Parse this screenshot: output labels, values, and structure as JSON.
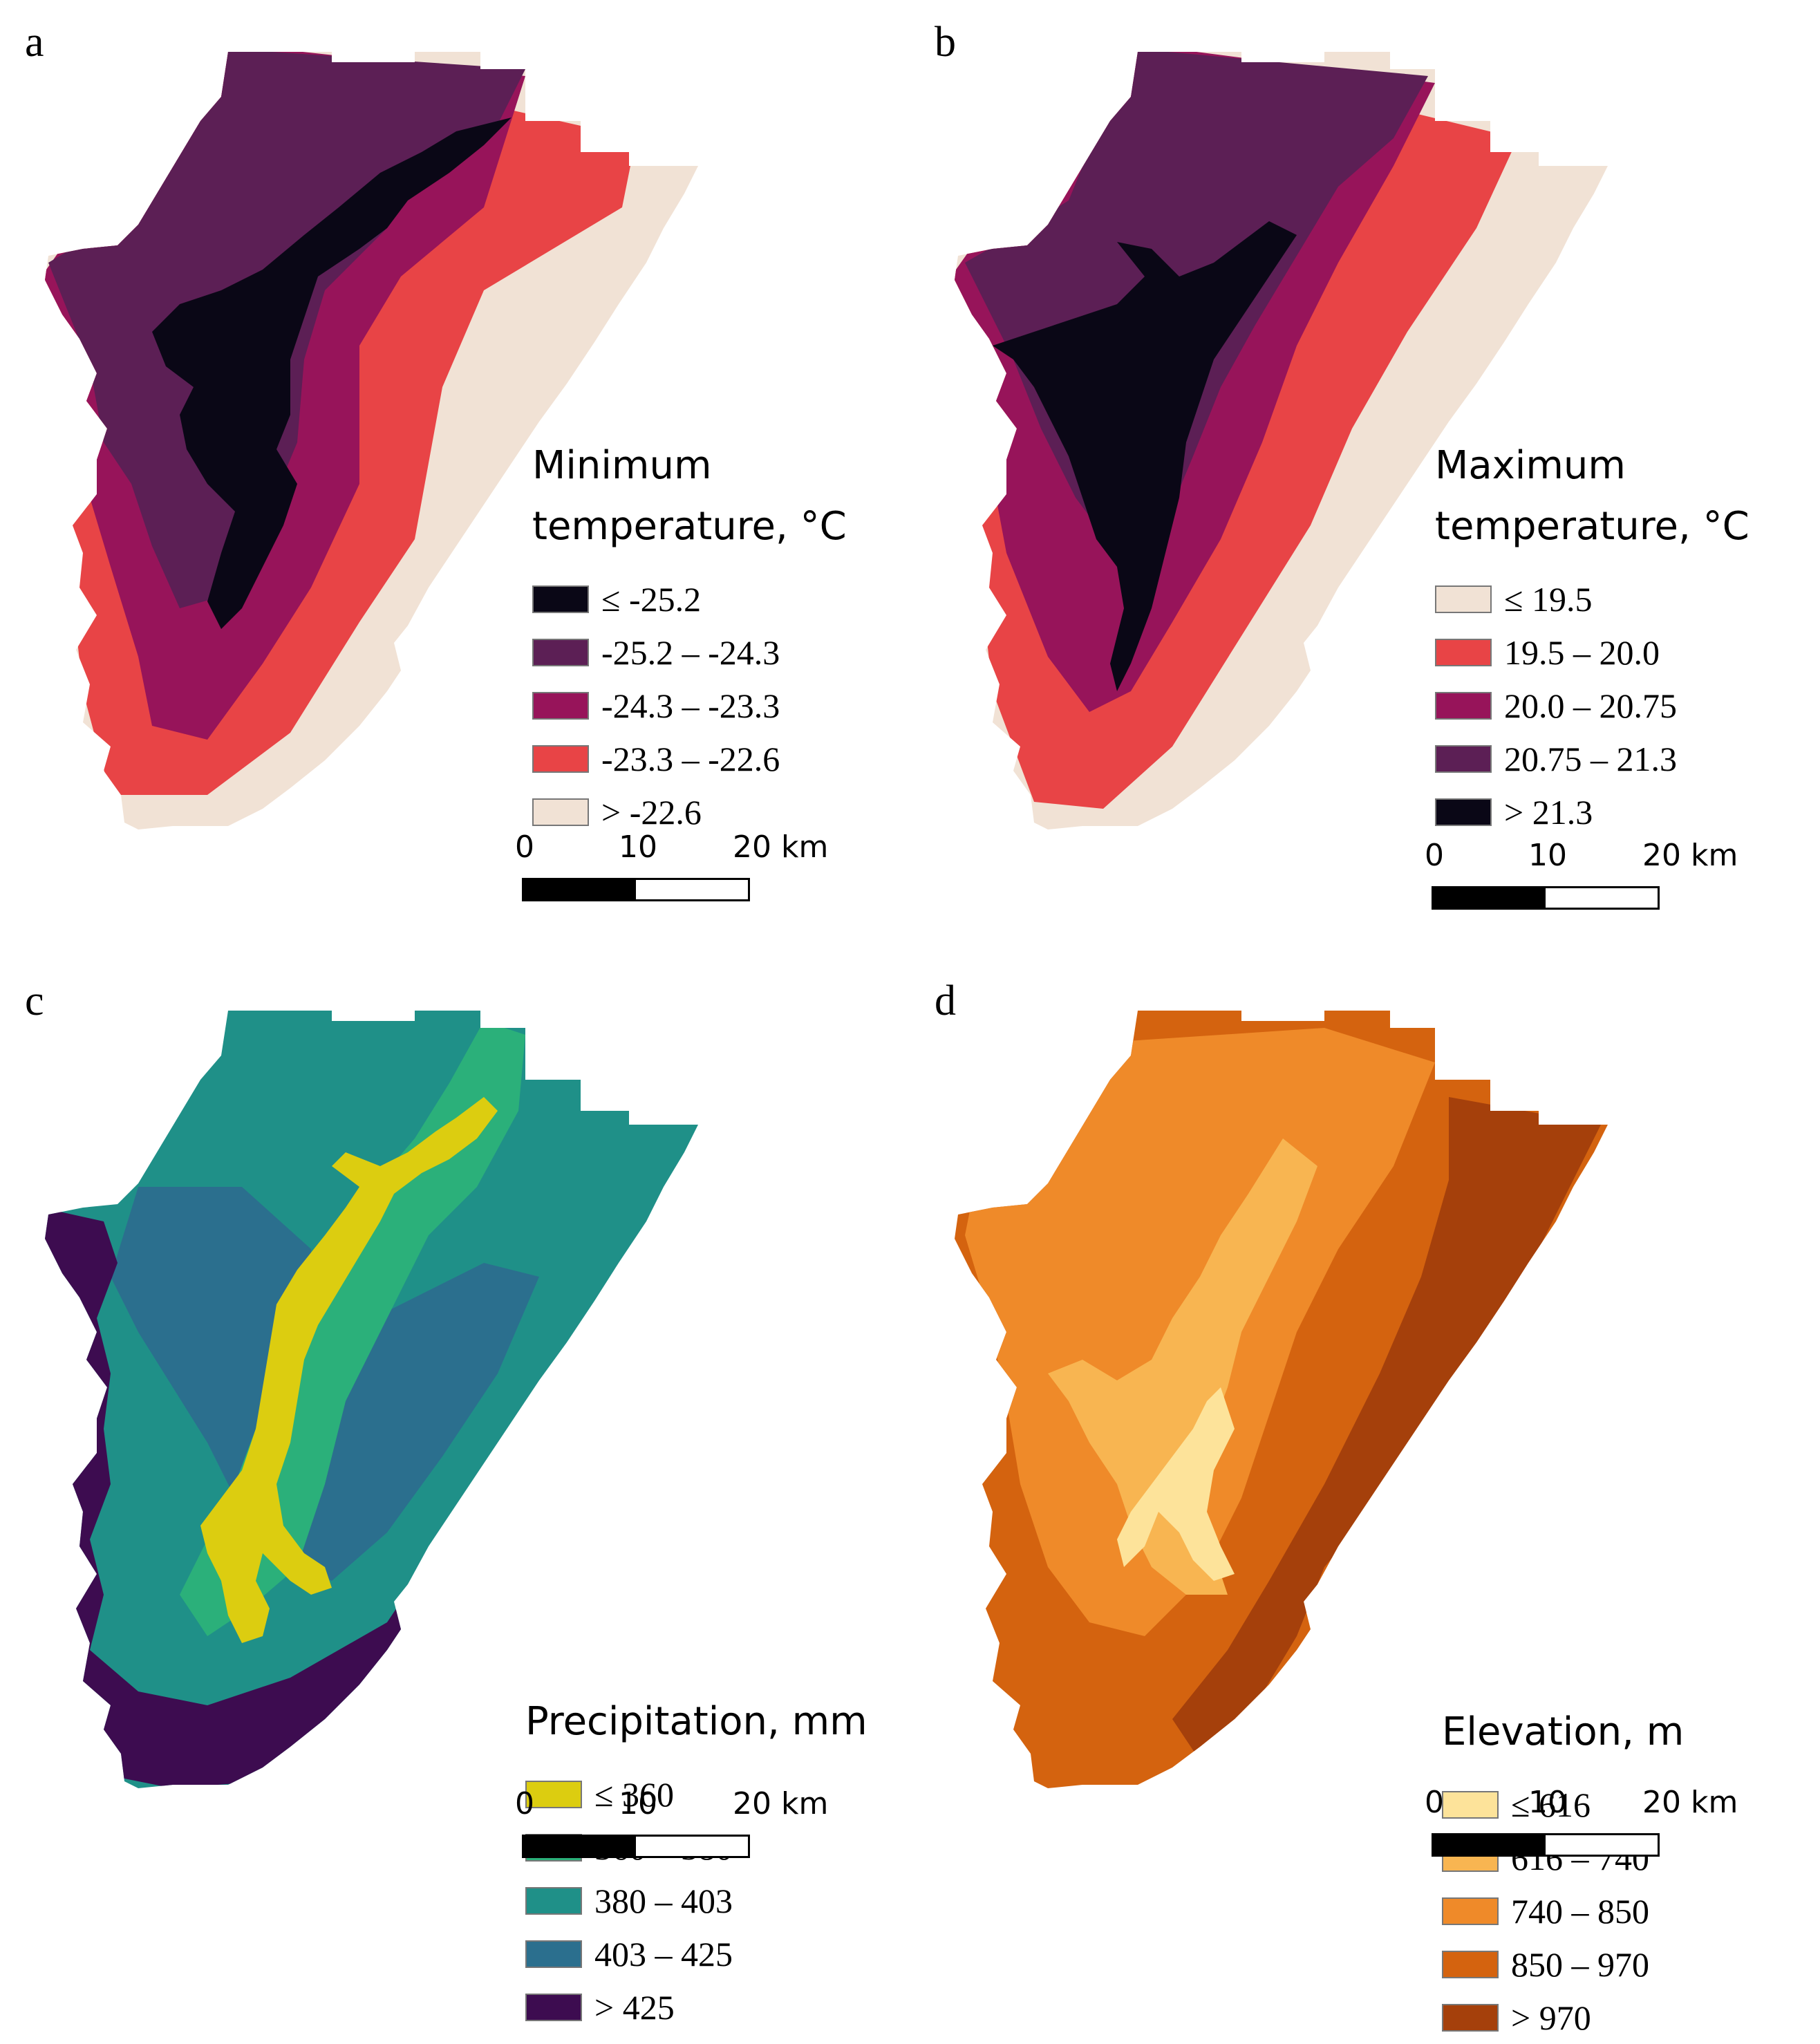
{
  "panels": {
    "a": {
      "letter": "a",
      "title_line1": "Minimum",
      "title_line2": "temperature, °C",
      "legend": [
        {
          "label": "≤ -25.2",
          "color": "#0a0716"
        },
        {
          "label": "-25.2 – -24.3",
          "color": "#5c1f55"
        },
        {
          "label": "-24.3 – -23.3",
          "color": "#97145a"
        },
        {
          "label": "-23.3 – -22.6",
          "color": "#e84446"
        },
        {
          "label": "> -22.6",
          "color": "#f1e2d5"
        }
      ]
    },
    "b": {
      "letter": "b",
      "title_line1": "Maximum",
      "title_line2": "temperature, °C",
      "legend": [
        {
          "label": "≤ 19.5",
          "color": "#f1e2d5"
        },
        {
          "label": "19.5 – 20.0",
          "color": "#e84446"
        },
        {
          "label": "20.0 – 20.75",
          "color": "#97145a"
        },
        {
          "label": "20.75 – 21.3",
          "color": "#5c1f55"
        },
        {
          "label": "> 21.3",
          "color": "#0a0716"
        }
      ]
    },
    "c": {
      "letter": "c",
      "title_line1": "Precipitation, mm",
      "legend": [
        {
          "label": "≤ 360",
          "color": "#dccd10"
        },
        {
          "label": "360 – 380",
          "color": "#2bb07a"
        },
        {
          "label": "380 – 403",
          "color": "#1f9088"
        },
        {
          "label": "403 – 425",
          "color": "#2b6f8e"
        },
        {
          "label": "> 425",
          "color": "#3d0c50"
        }
      ]
    },
    "d": {
      "letter": "d",
      "title_line1": "Elevation, m",
      "legend": [
        {
          "label": "≤ 616",
          "color": "#fde39a"
        },
        {
          "label": "616 – 740",
          "color": "#f8b551"
        },
        {
          "label": "740 – 850",
          "color": "#ef8a29"
        },
        {
          "label": "850 – 970",
          "color": "#d4630f"
        },
        {
          "label": "> 970",
          "color": "#a5400b"
        }
      ]
    }
  },
  "scalebar": {
    "tick0": "0",
    "tick1": "10",
    "tick2": "20 km"
  }
}
